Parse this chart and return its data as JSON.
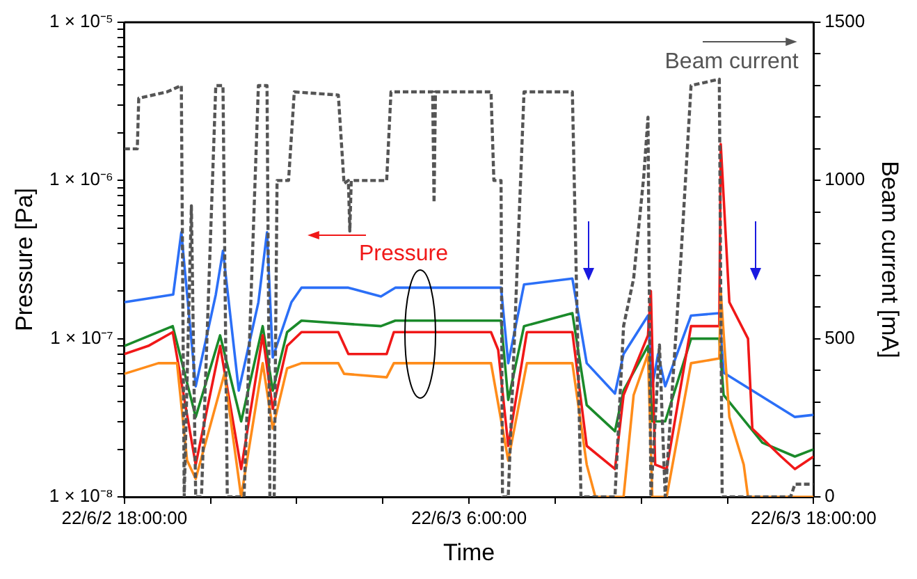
{
  "chart_data": {
    "type": "line",
    "xlabel": "Time",
    "ylabel": "Pressure [Pa]",
    "y2label": "Beam current [mA]",
    "annotations": [
      "Pressure",
      "Beam current"
    ],
    "xlim": [
      "--06-02T18:00",
      "--06-03T18:00"
    ],
    "xticks": [
      {
        "value": "--06-02T18:00",
        "label": "22/6/2 18:00:00"
      },
      {
        "value": "--06-02T21:00",
        "label": null
      },
      {
        "value": "--06-03T00:00",
        "label": null
      },
      {
        "value": "--06-03T03:00",
        "label": null
      },
      {
        "value": "--06-03T06:00",
        "label": "22/6/3 6:00:00"
      },
      {
        "value": "--06-03T09:00",
        "label": null
      },
      {
        "value": "--06-03T12:00",
        "label": null
      },
      {
        "value": "--06-03T15:00",
        "label": null
      },
      {
        "value": "--06-03T18:00",
        "label": "22/6/3 18:00:00"
      }
    ],
    "log": "y",
    "ylim": [
      1e-08,
      1e-05
    ],
    "yticks": [
      {
        "value": 1e-08,
        "label": "1 × 10⁻⁸"
      },
      {
        "value": 2e-08,
        "label": null
      },
      {
        "value": 3e-08,
        "label": null
      },
      {
        "value": 4e-08,
        "label": null
      },
      {
        "value": 5e-08,
        "label": null
      },
      {
        "value": 6e-08,
        "label": null
      },
      {
        "value": 7e-08,
        "label": null
      },
      {
        "value": 8e-08,
        "label": null
      },
      {
        "value": 9e-08,
        "label": null
      },
      {
        "value": 1e-07,
        "label": "1 × 10⁻⁷"
      },
      {
        "value": 2e-07,
        "label": null
      },
      {
        "value": 3e-07,
        "label": null
      },
      {
        "value": 4e-07,
        "label": null
      },
      {
        "value": 5e-07,
        "label": null
      },
      {
        "value": 6e-07,
        "label": null
      },
      {
        "value": 7e-07,
        "label": null
      },
      {
        "value": 8e-07,
        "label": null
      },
      {
        "value": 9e-07,
        "label": null
      },
      {
        "value": 1e-06,
        "label": "1 × 10⁻⁶"
      },
      {
        "value": 2e-06,
        "label": null
      },
      {
        "value": 3e-06,
        "label": null
      },
      {
        "value": 4e-06,
        "label": null
      },
      {
        "value": 5e-06,
        "label": null
      },
      {
        "value": 6e-06,
        "label": null
      },
      {
        "value": 7e-06,
        "label": null
      },
      {
        "value": 8e-06,
        "label": null
      },
      {
        "value": 9e-06,
        "label": null
      },
      {
        "value": 1e-05,
        "label": "1 × 10⁻⁵"
      }
    ],
    "y2lim": [
      0,
      1500
    ],
    "y2ticks": [
      0,
      {
        "value": 100,
        "label": null
      },
      {
        "value": 200,
        "label": null
      },
      {
        "value": 300,
        "label": null
      },
      {
        "value": 400,
        "label": null
      },
      500,
      {
        "value": 600,
        "label": null
      },
      {
        "value": 700,
        "label": null
      },
      {
        "value": 800,
        "label": null
      },
      {
        "value": 900,
        "label": null
      },
      1000,
      {
        "value": 1100,
        "label": null
      },
      {
        "value": 1200,
        "label": null
      },
      {
        "value": 1300,
        "label": null
      },
      {
        "value": 1400,
        "label": null
      },
      1500
    ],
    "grid": false,
    "legend": false,
    "series": [
      {
        "color": "#2b6ff7",
        "x": [
          "--06-02T18:00",
          "--06-02T19:42",
          "--06-02T19:59",
          "--06-02T20:29",
          "--06-02T21:11",
          "--06-02T21:26",
          "--06-02T21:59",
          "--06-02T22:40",
          "--06-02T22:58",
          "--06-02T23:10",
          "--06-02T23:49",
          "--06-03T00:10",
          "--06-03T01:48",
          "--06-03T02:56",
          "--06-03T03:26",
          "--06-03T07:07",
          "--06-03T07:22",
          "--06-03T07:55",
          "--06-03T09:36",
          "--06-03T10:06",
          "--06-03T11:05",
          "--06-03T11:23",
          "--06-03T12:14",
          "--06-03T12:23",
          "--06-03T12:35",
          "--06-03T12:50",
          "--06-03T13:44",
          "--06-03T14:43",
          "--06-03T14:52",
          "--06-03T17:21",
          "--06-03T18:00"
        ],
        "values": [
          1.7e-07,
          1.9e-07,
          4.7e-07,
          5e-08,
          1.9e-07,
          3.6e-07,
          4.7e-08,
          1.7e-07,
          4.7e-07,
          7.6e-08,
          1.7e-07,
          2.1e-07,
          2.1e-07,
          1.85e-07,
          2.1e-07,
          2.1e-07,
          7e-08,
          2.2e-07,
          2.4e-07,
          7e-08,
          4.5e-08,
          8e-08,
          1.4e-07,
          5e-08,
          8e-08,
          5e-08,
          1.4e-07,
          1.45e-07,
          6.1e-08,
          3.2e-08,
          3.3e-08
        ]
      },
      {
        "color": "#1a8a2a",
        "x": [
          "--06-02T18:00",
          "--06-02T19:41",
          "--06-02T20:29",
          "--06-02T21:20",
          "--06-02T22:04",
          "--06-02T22:49",
          "--06-02T23:10",
          "--06-02T23:40",
          "--06-03T00:10",
          "--06-03T02:56",
          "--06-03T03:26",
          "--06-03T07:07",
          "--06-03T07:22",
          "--06-03T07:55",
          "--06-03T09:36",
          "--06-03T10:06",
          "--06-03T11:05",
          "--06-03T11:23",
          "--06-03T12:14",
          "--06-03T12:23",
          "--06-03T12:50",
          "--06-03T13:44",
          "--06-03T14:43",
          "--06-03T14:52",
          "--06-03T16:13",
          "--06-03T17:21",
          "--06-03T18:00"
        ],
        "values": [
          9e-08,
          1.2e-07,
          3.2e-08,
          1.05e-07,
          3e-08,
          1.2e-07,
          4.7e-08,
          1.1e-07,
          1.3e-07,
          1.2e-07,
          1.3e-07,
          1.3e-07,
          4.1e-08,
          1.2e-07,
          1.45e-07,
          3.8e-08,
          2.6e-08,
          4.7e-08,
          9e-08,
          3e-08,
          3e-08,
          1e-07,
          1e-07,
          4.4e-08,
          2.2e-08,
          1.8e-08,
          2e-08
        ]
      },
      {
        "color": "#f01818",
        "x": [
          "--06-02T18:00",
          "--06-02T18:50",
          "--06-02T19:41",
          "--06-02T20:29",
          "--06-02T21:20",
          "--06-02T22:04",
          "--06-02T22:49",
          "--06-02T23:10",
          "--06-02T23:40",
          "--06-03T00:10",
          "--06-03T01:27",
          "--06-03T01:48",
          "--06-03T03:08",
          "--06-03T03:23",
          "--06-03T06:46",
          "--06-03T07:01",
          "--06-03T07:22",
          "--06-03T08:01",
          "--06-03T09:36",
          "--06-03T10:06",
          "--06-03T11:05",
          "--06-03T11:23",
          "--06-03T12:14",
          "--06-03T12:20",
          "--06-03T12:29",
          "--06-03T12:53",
          "--06-03T13:44",
          "--06-03T14:43",
          "--06-03T14:46",
          "--06-03T15:04",
          "--06-03T15:43",
          "--06-03T15:52",
          "--06-03T16:52",
          "--06-03T17:21",
          "--06-03T18:00"
        ],
        "values": [
          8e-08,
          9e-08,
          1.1e-07,
          1.6e-08,
          9e-08,
          1.5e-08,
          1.05e-07,
          3.6e-08,
          9e-08,
          1.1e-07,
          1.1e-07,
          8e-08,
          8e-08,
          1.1e-07,
          1.1e-07,
          8.5e-08,
          2.1e-08,
          1.1e-07,
          1.1e-07,
          2.1e-08,
          1.5e-08,
          4.4e-08,
          1.05e-07,
          2e-07,
          1.6e-08,
          1.5e-08,
          1.2e-07,
          1.2e-07,
          1.7e-06,
          1.7e-07,
          1e-07,
          2.7e-08,
          1.8e-08,
          1.5e-08,
          1.8e-08
        ]
      },
      {
        "color": "#ff8c1a",
        "x": [
          "--06-02T18:00",
          "--06-02T19:11",
          "--06-02T19:50",
          "--06-02T20:11",
          "--06-02T20:29",
          "--06-02T21:29",
          "--06-02T22:04",
          "--06-02T22:49",
          "--06-02T23:10",
          "--06-02T23:40",
          "--06-03T00:10",
          "--06-03T01:27",
          "--06-03T01:39",
          "--06-03T03:08",
          "--06-03T03:23",
          "--06-03T06:46",
          "--06-03T07:22",
          "--06-03T08:01",
          "--06-03T09:36",
          "--06-03T10:06",
          "--06-03T10:24",
          "--06-03T11:23",
          "--06-03T11:44",
          "--06-03T12:14",
          "--06-03T12:23",
          "--06-03T12:53",
          "--06-03T13:44",
          "--06-03T14:43",
          "--06-03T14:46",
          "--06-03T15:04",
          "--06-03T15:34",
          "--06-03T15:43",
          "--06-03T18:00"
        ],
        "values": [
          6e-08,
          7e-08,
          7e-08,
          1.7e-08,
          1.3e-08,
          6e-08,
          1e-08,
          7e-08,
          2.7e-08,
          6.5e-08,
          7e-08,
          7e-08,
          6e-08,
          5.7e-08,
          7e-08,
          7e-08,
          1.7e-08,
          7e-08,
          7e-08,
          1.6e-08,
          1e-08,
          1e-08,
          4.4e-08,
          8e-08,
          1e-08,
          1e-08,
          7e-08,
          7.5e-08,
          2e-07,
          3.2e-08,
          1.6e-08,
          1e-08,
          1e-08
        ]
      },
      {
        "color": "#555555",
        "axis": "y2",
        "line_style": "dashed",
        "x": [
          "--06-02T18:00",
          "--06-02T18:27",
          "--06-02T18:30",
          "--06-02T19:29",
          "--06-02T19:59",
          "--06-02T20:05",
          "--06-02T20:20",
          "--06-02T20:29",
          "--06-02T20:41",
          "--06-02T21:11",
          "--06-02T21:26",
          "--06-02T21:35",
          "--06-02T22:10",
          "--06-02T22:40",
          "--06-02T22:58",
          "--06-02T23:04",
          "--06-02T23:13",
          "--06-02T23:19",
          "--06-02T23:43",
          "--06-02T23:55",
          "--06-03T01:27",
          "--06-03T01:39",
          "--06-03T01:48",
          "--06-03T01:51",
          "--06-03T01:54",
          "--06-03T03:08",
          "--06-03T03:17",
          "--06-03T04:44",
          "--06-03T04:47",
          "--06-03T04:50",
          "--06-03T06:46",
          "--06-03T06:52",
          "--06-03T07:07",
          "--06-03T07:10",
          "--06-03T07:22",
          "--06-03T07:55",
          "--06-03T09:36",
          "--06-03T09:54",
          "--06-03T11:05",
          "--06-03T11:23",
          "--06-03T11:44",
          "--06-03T12:05",
          "--06-03T12:14",
          "--06-03T12:20",
          "--06-03T12:38",
          "--06-03T12:50",
          "--06-03T13:23",
          "--06-03T13:44",
          "--06-03T14:43",
          "--06-03T14:49",
          "--06-03T17:12",
          "--06-03T17:21",
          "--06-03T18:00"
        ],
        "values": [
          1100,
          1100,
          1260,
          1280,
          1300,
          0,
          920,
          0,
          0,
          1300,
          1300,
          0,
          0,
          1300,
          1300,
          0,
          0,
          1000,
          1000,
          1280,
          1270,
          990,
          1000,
          840,
          1000,
          1000,
          1280,
          1280,
          930,
          1280,
          1280,
          1000,
          1000,
          0,
          0,
          1280,
          1280,
          0,
          0,
          540,
          690,
          1010,
          1200,
          0,
          480,
          0,
          760,
          1300,
          1320,
          0,
          0,
          40,
          40
        ]
      }
    ]
  }
}
